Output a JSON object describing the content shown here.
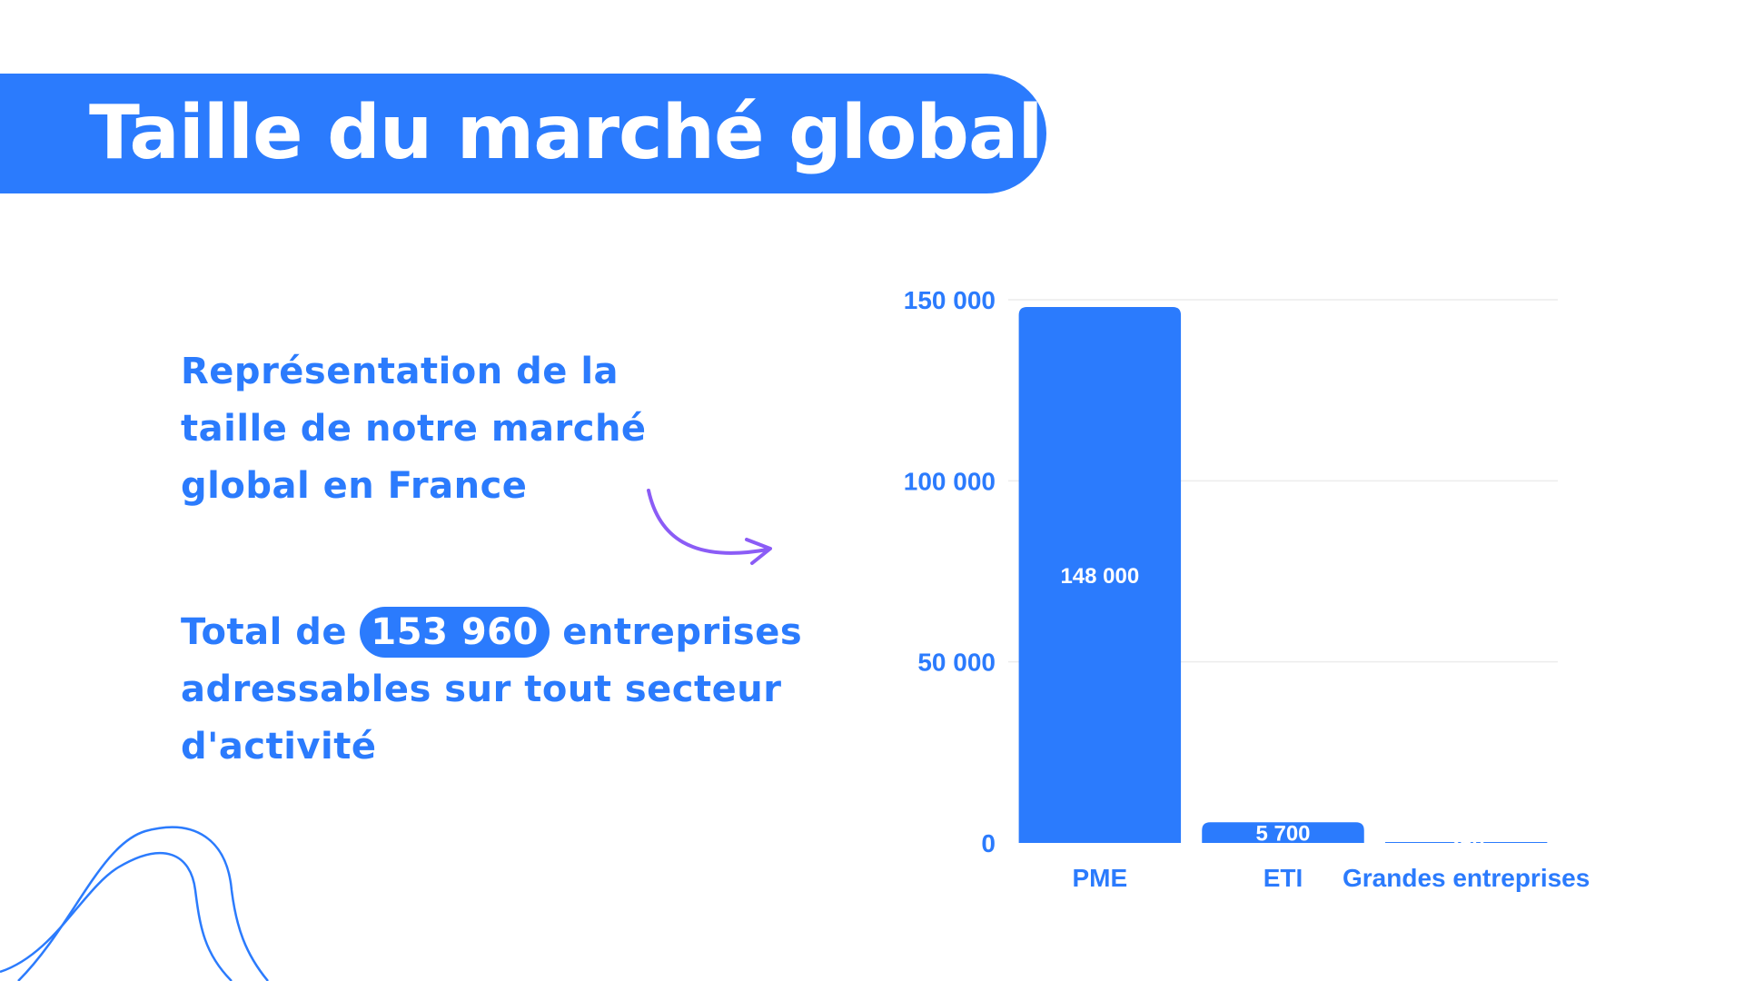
{
  "header": {
    "title": "Taille du marché global"
  },
  "description": {
    "lines": [
      "Représentation de la",
      "taille de notre marché",
      "global en France"
    ]
  },
  "total": {
    "prefix": "Total de",
    "highlight": "153 960",
    "suffix": "entreprises",
    "line2": "adressables sur tout secteur",
    "line3": "d'activité"
  },
  "colors": {
    "accent": "#2b7bfd",
    "arrow": "#8b5cf6"
  },
  "icons": {
    "arrow": "curved-arrow-icon",
    "decoration": "wavy-lines-icon"
  },
  "chart_data": {
    "type": "bar",
    "categories": [
      "PME",
      "ETI",
      "Grandes entreprises"
    ],
    "values": [
      148000,
      5700,
      260
    ],
    "data_labels": [
      "148 000",
      "5 700",
      "260"
    ],
    "yticks": [
      0,
      50000,
      100000,
      150000
    ],
    "ytick_labels": [
      "0",
      "50 000",
      "100 000",
      "150 000"
    ],
    "ylim": [
      0,
      150000
    ],
    "grid": true,
    "legend": "none"
  }
}
